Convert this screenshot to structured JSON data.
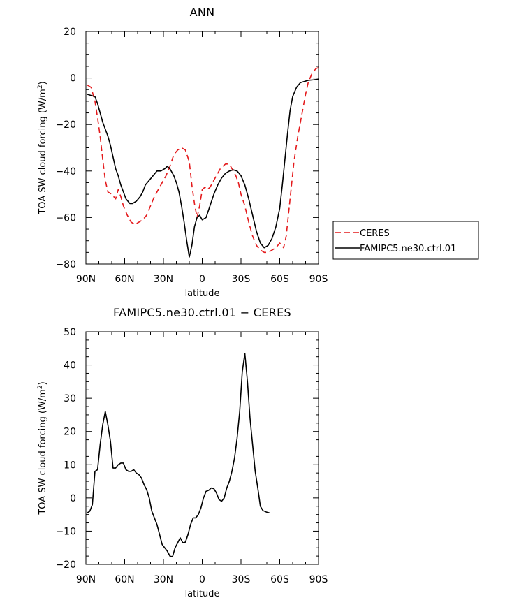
{
  "chart_data": [
    {
      "type": "line",
      "title": "ANN",
      "xlabel": "latitude",
      "ylabel_main": "TOA SW cloud forcing (W/m",
      "ylabel_sup": "2",
      "ylabel_end": ")",
      "xlim": [
        90,
        -90
      ],
      "ylim": [
        -80,
        20
      ],
      "xticks": [
        {
          "v": 90,
          "label": "90N"
        },
        {
          "v": 60,
          "label": "60N"
        },
        {
          "v": 30,
          "label": "30N"
        },
        {
          "v": 0,
          "label": "0"
        },
        {
          "v": -30,
          "label": "30S"
        },
        {
          "v": -60,
          "label": "60S"
        },
        {
          "v": -90,
          "label": "90S"
        }
      ],
      "yticks": [
        {
          "v": 20,
          "label": "20"
        },
        {
          "v": 0,
          "label": "0"
        },
        {
          "v": -20,
          "label": "−20"
        },
        {
          "v": -40,
          "label": "−40"
        },
        {
          "v": -60,
          "label": "−60"
        },
        {
          "v": -80,
          "label": "−80"
        }
      ],
      "legend_position": "right",
      "series": [
        {
          "name": "CERES",
          "color": "#e41a1c",
          "dash": "dashed",
          "points": [
            [
              89,
              -3
            ],
            [
              86,
              -4
            ],
            [
              83,
              -10
            ],
            [
              81,
              -17
            ],
            [
              79,
              -25
            ],
            [
              77,
              -35
            ],
            [
              75,
              -44
            ],
            [
              73,
              -49
            ],
            [
              70,
              -50
            ],
            [
              67,
              -52
            ],
            [
              65,
              -48
            ],
            [
              63,
              -51
            ],
            [
              61,
              -55
            ],
            [
              58,
              -59
            ],
            [
              55,
              -62
            ],
            [
              52,
              -63
            ],
            [
              49,
              -62
            ],
            [
              46,
              -61
            ],
            [
              43,
              -59
            ],
            [
              40,
              -55
            ],
            [
              37,
              -51
            ],
            [
              34,
              -48
            ],
            [
              31,
              -45
            ],
            [
              28,
              -42
            ],
            [
              25,
              -38
            ],
            [
              22,
              -33
            ],
            [
              19,
              -31
            ],
            [
              16,
              -30
            ],
            [
              13,
              -31
            ],
            [
              10,
              -36
            ],
            [
              8,
              -46
            ],
            [
              6,
              -54
            ],
            [
              4,
              -60
            ],
            [
              2,
              -55
            ],
            [
              0,
              -48
            ],
            [
              -2,
              -47
            ],
            [
              -4,
              -48
            ],
            [
              -6,
              -47
            ],
            [
              -8,
              -45
            ],
            [
              -10,
              -43
            ],
            [
              -12,
              -41
            ],
            [
              -14,
              -39
            ],
            [
              -16,
              -38
            ],
            [
              -18,
              -37
            ],
            [
              -20,
              -37
            ],
            [
              -22,
              -38
            ],
            [
              -24,
              -40
            ],
            [
              -26,
              -42
            ],
            [
              -28,
              -45
            ],
            [
              -30,
              -50
            ],
            [
              -33,
              -55
            ],
            [
              -36,
              -62
            ],
            [
              -39,
              -68
            ],
            [
              -42,
              -72
            ],
            [
              -45,
              -74
            ],
            [
              -48,
              -75
            ],
            [
              -51,
              -75
            ],
            [
              -54,
              -74
            ],
            [
              -57,
              -73
            ],
            [
              -60,
              -71
            ],
            [
              -63,
              -73
            ],
            [
              -65,
              -68
            ],
            [
              -68,
              -52
            ],
            [
              -71,
              -36
            ],
            [
              -74,
              -25
            ],
            [
              -77,
              -16
            ],
            [
              -80,
              -7
            ],
            [
              -82,
              -2
            ],
            [
              -85,
              2
            ],
            [
              -88,
              4
            ],
            [
              -90,
              4.5
            ]
          ]
        },
        {
          "name": "FAMIPC5.ne30.ctrl.01",
          "color": "#000000",
          "dash": "solid",
          "points": [
            [
              89,
              -7
            ],
            [
              86,
              -7.5
            ],
            [
              83,
              -8
            ],
            [
              81,
              -11
            ],
            [
              79,
              -15
            ],
            [
              77,
              -19
            ],
            [
              75,
              -22
            ],
            [
              73,
              -25
            ],
            [
              71,
              -29
            ],
            [
              69,
              -34
            ],
            [
              67,
              -39
            ],
            [
              65,
              -42
            ],
            [
              63,
              -46
            ],
            [
              61,
              -49
            ],
            [
              59,
              -52
            ],
            [
              56,
              -54
            ],
            [
              54,
              -54
            ],
            [
              51,
              -53
            ],
            [
              48,
              -51
            ],
            [
              46,
              -49
            ],
            [
              44,
              -46
            ],
            [
              41,
              -44
            ],
            [
              38,
              -42
            ],
            [
              35,
              -40
            ],
            [
              32,
              -40
            ],
            [
              29,
              -39
            ],
            [
              27,
              -38
            ],
            [
              25,
              -39
            ],
            [
              22,
              -42
            ],
            [
              20,
              -45
            ],
            [
              18,
              -49
            ],
            [
              16,
              -55
            ],
            [
              14,
              -62
            ],
            [
              12,
              -70
            ],
            [
              10,
              -77
            ],
            [
              8,
              -72
            ],
            [
              6,
              -64
            ],
            [
              4,
              -60
            ],
            [
              2,
              -59
            ],
            [
              0,
              -61
            ],
            [
              -3,
              -60
            ],
            [
              -6,
              -55
            ],
            [
              -9,
              -50
            ],
            [
              -12,
              -46
            ],
            [
              -15,
              -43
            ],
            [
              -18,
              -41
            ],
            [
              -21,
              -40
            ],
            [
              -24,
              -39.5
            ],
            [
              -27,
              -40
            ],
            [
              -30,
              -42
            ],
            [
              -33,
              -46
            ],
            [
              -36,
              -52
            ],
            [
              -39,
              -59
            ],
            [
              -42,
              -66
            ],
            [
              -45,
              -71
            ],
            [
              -48,
              -73
            ],
            [
              -51,
              -72
            ],
            [
              -54,
              -69
            ],
            [
              -57,
              -64
            ],
            [
              -60,
              -56
            ],
            [
              -62,
              -46
            ],
            [
              -64,
              -35
            ],
            [
              -66,
              -24
            ],
            [
              -68,
              -14
            ],
            [
              -70,
              -8
            ],
            [
              -73,
              -4
            ],
            [
              -76,
              -2
            ],
            [
              -79,
              -1.5
            ],
            [
              -82,
              -1
            ],
            [
              -86,
              -0.8
            ],
            [
              -90,
              -0.5
            ]
          ]
        }
      ]
    },
    {
      "type": "line",
      "title": "FAMIPC5.ne30.ctrl.01 − CERES",
      "xlabel": "latitude",
      "ylabel_main": "TOA SW cloud forcing (W/m",
      "ylabel_sup": "2",
      "ylabel_end": ")",
      "xlim": [
        90,
        -90
      ],
      "ylim": [
        -20,
        50
      ],
      "xticks": [
        {
          "v": 90,
          "label": "90N"
        },
        {
          "v": 60,
          "label": "60N"
        },
        {
          "v": 30,
          "label": "30N"
        },
        {
          "v": 0,
          "label": "0"
        },
        {
          "v": -30,
          "label": "30S"
        },
        {
          "v": -60,
          "label": "60S"
        },
        {
          "v": -90,
          "label": "90S"
        }
      ],
      "yticks": [
        {
          "v": 50,
          "label": "50"
        },
        {
          "v": 40,
          "label": "40"
        },
        {
          "v": 30,
          "label": "30"
        },
        {
          "v": 20,
          "label": "20"
        },
        {
          "v": 10,
          "label": "10"
        },
        {
          "v": 0,
          "label": "0"
        },
        {
          "v": -10,
          "label": "−10"
        },
        {
          "v": -20,
          "label": "−20"
        }
      ],
      "series": [
        {
          "color": "#000000",
          "dash": "solid",
          "points": [
            [
              89,
              -4.5
            ],
            [
              87,
              -4
            ],
            [
              85,
              -2
            ],
            [
              83,
              8
            ],
            [
              81,
              8.5
            ],
            [
              79,
              16
            ],
            [
              77,
              22
            ],
            [
              75,
              26
            ],
            [
              73,
              22
            ],
            [
              71,
              17
            ],
            [
              69,
              9
            ],
            [
              67,
              9
            ],
            [
              65,
              10
            ],
            [
              63,
              10.5
            ],
            [
              61,
              10.5
            ],
            [
              59,
              8.5
            ],
            [
              57,
              8
            ],
            [
              55,
              8
            ],
            [
              53,
              8.5
            ],
            [
              51,
              7.5
            ],
            [
              49,
              7
            ],
            [
              47,
              6
            ],
            [
              45,
              4
            ],
            [
              43,
              2.5
            ],
            [
              41,
              0
            ],
            [
              39,
              -4
            ],
            [
              37,
              -6
            ],
            [
              35,
              -8
            ],
            [
              33,
              -11
            ],
            [
              31,
              -14
            ],
            [
              29,
              -15
            ],
            [
              27,
              -16
            ],
            [
              25,
              -17.5
            ],
            [
              23,
              -17.7
            ],
            [
              21,
              -15
            ],
            [
              19,
              -13.5
            ],
            [
              17,
              -12
            ],
            [
              15,
              -13.5
            ],
            [
              13,
              -13.3
            ],
            [
              11,
              -11
            ],
            [
              9,
              -8
            ],
            [
              7,
              -6
            ],
            [
              5,
              -6
            ],
            [
              3,
              -5
            ],
            [
              1,
              -3
            ],
            [
              -1,
              0
            ],
            [
              -3,
              2
            ],
            [
              -5,
              2.3
            ],
            [
              -7,
              3
            ],
            [
              -9,
              2.8
            ],
            [
              -11,
              1.5
            ],
            [
              -13,
              -0.5
            ],
            [
              -15,
              -1
            ],
            [
              -17,
              0
            ],
            [
              -19,
              3
            ],
            [
              -21,
              5
            ],
            [
              -23,
              8
            ],
            [
              -25,
              12
            ],
            [
              -27,
              18
            ],
            [
              -29,
              26
            ],
            [
              -31,
              38
            ],
            [
              -33,
              43.5
            ],
            [
              -35,
              35
            ],
            [
              -37,
              24
            ],
            [
              -39,
              16
            ],
            [
              -41,
              8
            ],
            [
              -43,
              3
            ],
            [
              -45,
              -2.5
            ],
            [
              -47,
              -3.8
            ],
            [
              -50,
              -4.3
            ],
            [
              -52,
              -4.5
            ]
          ]
        }
      ]
    }
  ]
}
